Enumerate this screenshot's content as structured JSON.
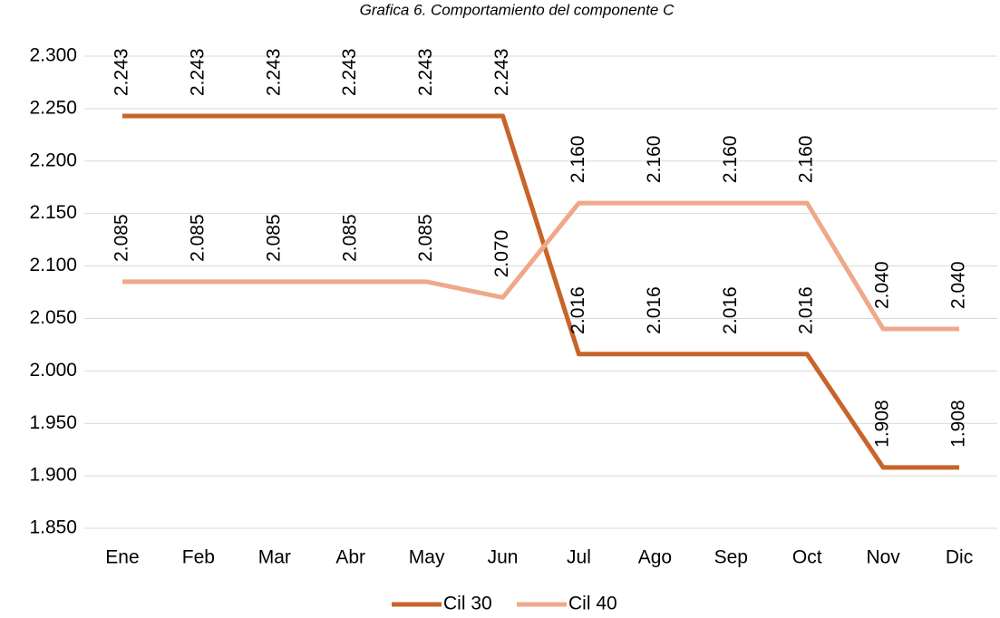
{
  "chart_data": {
    "type": "line",
    "title": "Grafica 6. Comportamiento del componente C",
    "categories": [
      "Ene",
      "Feb",
      "Mar",
      "Abr",
      "May",
      "Jun",
      "Jul",
      "Ago",
      "Sep",
      "Oct",
      "Nov",
      "Dic"
    ],
    "series": [
      {
        "name": "Cil 30",
        "color": "#c8642a",
        "values": [
          2.243,
          2.243,
          2.243,
          2.243,
          2.243,
          2.243,
          2.016,
          2.016,
          2.016,
          2.016,
          1.908,
          1.908
        ],
        "value_labels": [
          "2.243",
          "2.243",
          "2.243",
          "2.243",
          "2.243",
          "2.243",
          "2.016",
          "2.016",
          "2.016",
          "2.016",
          "1.908",
          "1.908"
        ]
      },
      {
        "name": "Cil 40",
        "color": "#f0a88a",
        "values": [
          2.085,
          2.085,
          2.085,
          2.085,
          2.085,
          2.07,
          2.16,
          2.16,
          2.16,
          2.16,
          2.04,
          2.04
        ],
        "value_labels": [
          "2.085",
          "2.085",
          "2.085",
          "2.085",
          "2.085",
          "2.070",
          "2.160",
          "2.160",
          "2.160",
          "2.160",
          "2.040",
          "2.040"
        ]
      }
    ],
    "ylim": [
      1.85,
      2.3
    ],
    "yticks": [
      {
        "value": 1.85,
        "label": "1.850"
      },
      {
        "value": 1.9,
        "label": "1.900"
      },
      {
        "value": 1.95,
        "label": "1.950"
      },
      {
        "value": 2.0,
        "label": "2.000"
      },
      {
        "value": 2.05,
        "label": "2.050"
      },
      {
        "value": 2.1,
        "label": "2.100"
      },
      {
        "value": 2.15,
        "label": "2.150"
      },
      {
        "value": 2.2,
        "label": "2.200"
      },
      {
        "value": 2.25,
        "label": "2.250"
      },
      {
        "value": 2.3,
        "label": "2.300"
      }
    ],
    "grid": true,
    "legend": "bottom"
  }
}
